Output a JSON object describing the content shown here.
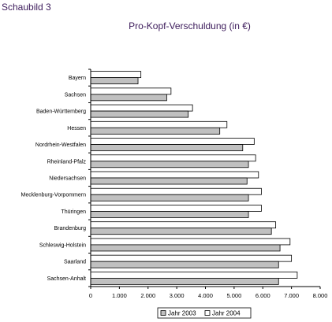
{
  "header": {
    "page_label": "Schaubild 3"
  },
  "chart_data": {
    "type": "bar",
    "orientation": "horizontal",
    "title": "Pro-Kopf-Verschuldung (in €)",
    "xlabel": "",
    "ylabel": "",
    "xlim": [
      0,
      8000
    ],
    "xticks": [
      0,
      1000,
      2000,
      3000,
      4000,
      5000,
      6000,
      7000,
      8000
    ],
    "xtick_labels": [
      "0",
      "1.000",
      "2.000",
      "3.000",
      "4.000",
      "5.000",
      "6.000",
      "7.000",
      "8.000"
    ],
    "grid": false,
    "legend_position": "bottom",
    "categories": [
      "Bayern",
      "Sachsen",
      "Baden-Württemberg",
      "Hessen",
      "Nordrhein-Westfalen",
      "Rheinland-Pfalz",
      "Niedersachsen",
      "Mecklenburg-Vorpommern",
      "Thüringen",
      "Brandenburg",
      "Schleswig-Holstein",
      "Saarland",
      "Sachsen-Anhalt"
    ],
    "series": [
      {
        "name": "Jahr 2003",
        "color": "#c0c0c0",
        "values": [
          1650,
          2650,
          3400,
          4500,
          5300,
          5500,
          5450,
          5500,
          5500,
          6300,
          6600,
          6550,
          6550
        ]
      },
      {
        "name": "Jahr 2004",
        "color": "#ffffff",
        "values": [
          1750,
          2800,
          3550,
          4750,
          5700,
          5750,
          5850,
          5950,
          5950,
          6450,
          6950,
          7000,
          7200
        ]
      }
    ]
  }
}
